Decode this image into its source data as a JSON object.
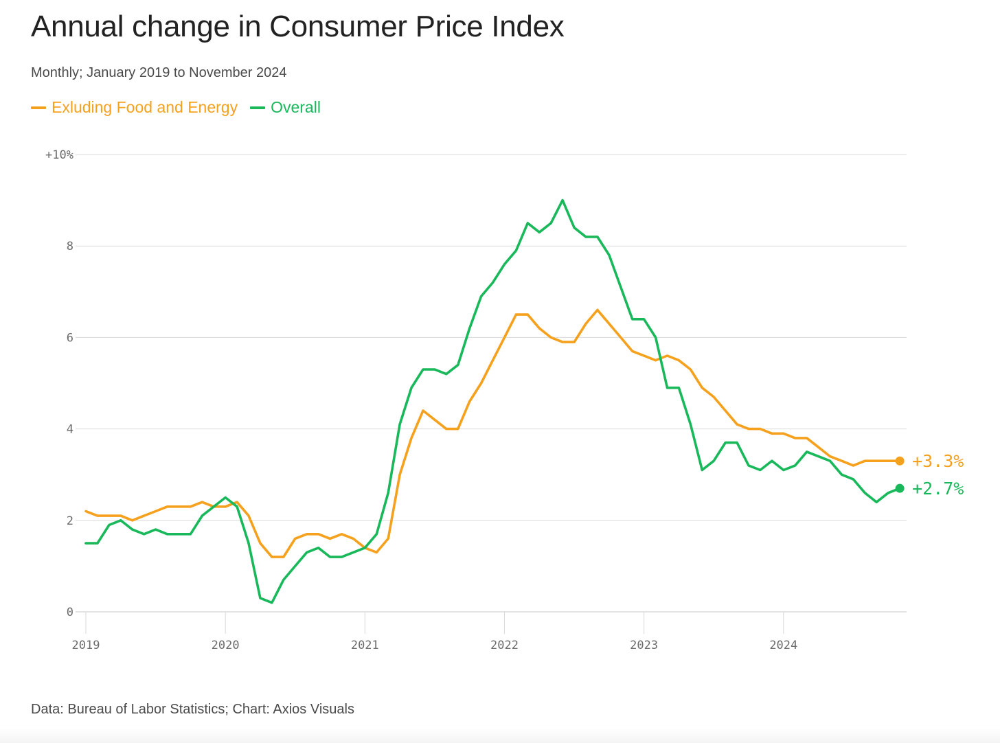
{
  "header": {
    "title": "Annual change in Consumer Price Index",
    "subtitle": "Monthly; January 2019 to November 2024"
  },
  "footer": {
    "source": "Data: Bureau of Labor Statistics; Chart: Axios Visuals"
  },
  "colors": {
    "core": "#f5a11d",
    "overall": "#19b85a",
    "grid": "#d9d9d9",
    "axis_text": "#6b6b6b"
  },
  "chart_data": {
    "type": "line",
    "title": "Annual change in Consumer Price Index",
    "subtitle": "Monthly; January 2019 to November 2024",
    "xlabel": "",
    "ylabel": "",
    "x_start": "2019-01",
    "x_end": "2024-11",
    "xticks": [
      "2019",
      "2020",
      "2021",
      "2022",
      "2023",
      "2024"
    ],
    "yticks": [
      {
        "value": 0,
        "label": "0"
      },
      {
        "value": 2,
        "label": "2"
      },
      {
        "value": 4,
        "label": "4"
      },
      {
        "value": 6,
        "label": "6"
      },
      {
        "value": 8,
        "label": "8"
      },
      {
        "value": 10,
        "label": "+10%"
      }
    ],
    "ylim": [
      0,
      10
    ],
    "grid": "horizontal",
    "legend_position": "top-left",
    "series": [
      {
        "name": "Exluding Food and Energy",
        "color": "#f5a11d",
        "end_label": "+3.3%",
        "values": [
          2.2,
          2.1,
          2.1,
          2.1,
          2.0,
          2.1,
          2.2,
          2.3,
          2.3,
          2.3,
          2.4,
          2.3,
          2.3,
          2.4,
          2.1,
          1.5,
          1.2,
          1.2,
          1.6,
          1.7,
          1.7,
          1.6,
          1.7,
          1.6,
          1.4,
          1.3,
          1.6,
          3.0,
          3.8,
          4.4,
          4.2,
          4.0,
          4.0,
          4.6,
          5.0,
          5.5,
          6.0,
          6.5,
          6.5,
          6.2,
          6.0,
          5.9,
          5.9,
          6.3,
          6.6,
          6.3,
          6.0,
          5.7,
          5.6,
          5.5,
          5.6,
          5.5,
          5.3,
          4.9,
          4.7,
          4.4,
          4.1,
          4.0,
          4.0,
          3.9,
          3.9,
          3.8,
          3.8,
          3.6,
          3.4,
          3.3,
          3.2,
          3.3,
          3.3,
          3.3,
          3.3
        ]
      },
      {
        "name": "Overall",
        "color": "#19b85a",
        "end_label": "+2.7%",
        "values": [
          1.5,
          1.5,
          1.9,
          2.0,
          1.8,
          1.7,
          1.8,
          1.7,
          1.7,
          1.7,
          2.1,
          2.3,
          2.5,
          2.3,
          1.5,
          0.3,
          0.2,
          0.7,
          1.0,
          1.3,
          1.4,
          1.2,
          1.2,
          1.3,
          1.4,
          1.7,
          2.6,
          4.1,
          4.9,
          5.3,
          5.3,
          5.2,
          5.4,
          6.2,
          6.9,
          7.2,
          7.6,
          7.9,
          8.5,
          8.3,
          8.5,
          9.0,
          8.4,
          8.2,
          8.2,
          7.8,
          7.1,
          6.4,
          6.4,
          6.0,
          4.9,
          4.9,
          4.1,
          3.1,
          3.3,
          3.7,
          3.7,
          3.2,
          3.1,
          3.3,
          3.1,
          3.2,
          3.5,
          3.4,
          3.3,
          3.0,
          2.9,
          2.6,
          2.4,
          2.6,
          2.7
        ]
      }
    ]
  }
}
